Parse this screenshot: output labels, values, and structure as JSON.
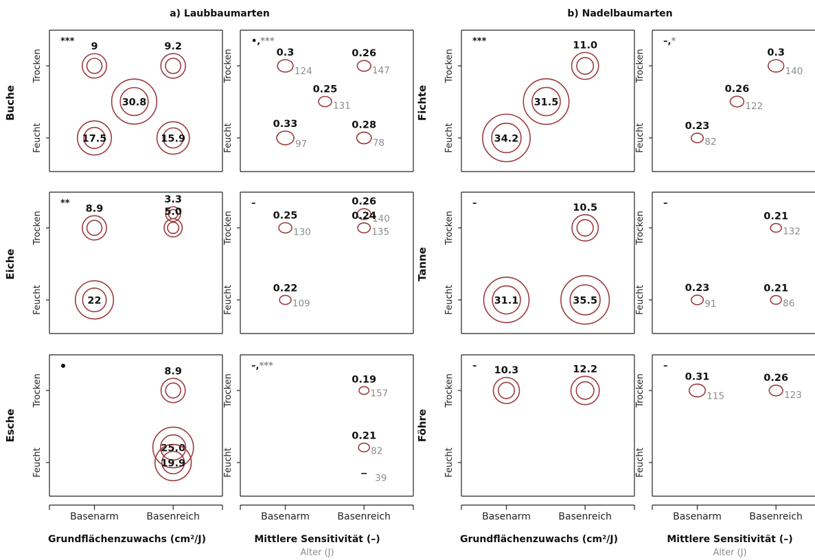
{
  "group_titles": [
    "a) Laubbaumarten",
    "b) Nadelbaumarten"
  ],
  "row_labels": [
    "Buche",
    "Eiche",
    "Esche",
    "Fichte",
    "Tanne",
    "Föhre"
  ],
  "y_tick_labels": [
    "Trocken",
    "Feucht"
  ],
  "x_tick_labels": [
    "Basenarm",
    "Basenreich"
  ],
  "x_titles": {
    "growth": "Grundflächenzuwachs (cm²/J)",
    "sensitivity": "Mittlere Sensitivität (–)",
    "sensitivity_sub": "Alter (J)"
  },
  "colors": {
    "circle": "#9b3a3e",
    "value": "#111111",
    "age": "#8c8c8c",
    "axis": "#222222"
  },
  "chart_data": [
    {
      "type": "scatter",
      "row": "Buche",
      "metric": "growth",
      "sig": [
        {
          "t": "***",
          "c": "black"
        }
      ],
      "points": [
        {
          "x": "Basenarm",
          "y": "Trocken",
          "value": "9"
        },
        {
          "x": "Basenarm",
          "y": "Feucht",
          "value": "17.5"
        },
        {
          "x": "Mitte",
          "y": "Mitte",
          "value": "30.8"
        },
        {
          "x": "Basenreich",
          "y": "Trocken",
          "value": "9.2"
        },
        {
          "x": "Basenreich",
          "y": "Feucht",
          "value": "15.9"
        }
      ]
    },
    {
      "type": "scatter",
      "row": "Buche",
      "metric": "sensitivity",
      "sig": [
        {
          "t": "•,",
          "c": "black"
        },
        {
          "t": "***",
          "c": "grey"
        }
      ],
      "points": [
        {
          "x": "Basenarm",
          "y": "Trocken",
          "value": "0.3",
          "age": "124"
        },
        {
          "x": "Basenarm",
          "y": "Feucht",
          "value": "0.33",
          "age": "97"
        },
        {
          "x": "Mitte",
          "y": "Mitte",
          "value": "0.25",
          "age": "131"
        },
        {
          "x": "Basenreich",
          "y": "Trocken",
          "value": "0.26",
          "age": "147"
        },
        {
          "x": "Basenreich",
          "y": "Feucht",
          "value": "0.28",
          "age": "78"
        }
      ]
    },
    {
      "type": "scatter",
      "row": "Fichte",
      "metric": "growth",
      "sig": [
        {
          "t": "***",
          "c": "black"
        }
      ],
      "points": [
        {
          "x": "Basenarm",
          "y": "Feucht",
          "value": "34.2"
        },
        {
          "x": "Mitte",
          "y": "Mitte",
          "value": "31.5"
        },
        {
          "x": "Basenreich",
          "y": "Trocken",
          "value": "11.0"
        }
      ]
    },
    {
      "type": "scatter",
      "row": "Fichte",
      "metric": "sensitivity",
      "sig": [
        {
          "t": "–,",
          "c": "black"
        },
        {
          "t": "*",
          "c": "grey"
        }
      ],
      "points": [
        {
          "x": "Basenarm",
          "y": "Feucht",
          "value": "0.23",
          "age": "82"
        },
        {
          "x": "Mitte",
          "y": "Mitte",
          "value": "0.26",
          "age": "122"
        },
        {
          "x": "Basenreich",
          "y": "Trocken",
          "value": "0.3",
          "age": "140"
        }
      ]
    },
    {
      "type": "scatter",
      "row": "Eiche",
      "metric": "growth",
      "sig": [
        {
          "t": "**",
          "c": "black"
        }
      ],
      "points": [
        {
          "x": "Basenarm",
          "y": "Trocken",
          "value": "8.9"
        },
        {
          "x": "Basenarm",
          "y": "Feucht",
          "value": "22"
        },
        {
          "x": "Basenreich",
          "y": "Sehr trocken",
          "value": "3.3"
        },
        {
          "x": "Basenreich",
          "y": "Trocken",
          "value": "5.0"
        }
      ]
    },
    {
      "type": "scatter",
      "row": "Eiche",
      "metric": "sensitivity",
      "sig": [
        {
          "t": "–",
          "c": "black"
        }
      ],
      "points": [
        {
          "x": "Basenarm",
          "y": "Trocken",
          "value": "0.25",
          "age": "130"
        },
        {
          "x": "Basenarm",
          "y": "Feucht",
          "value": "0.22",
          "age": "109"
        },
        {
          "x": "Basenreich",
          "y": "Sehr trocken",
          "value": "0.26",
          "age": "140"
        },
        {
          "x": "Basenreich",
          "y": "Trocken",
          "value": "0.24",
          "age": "135"
        }
      ]
    },
    {
      "type": "scatter",
      "row": "Tanne",
      "metric": "growth",
      "sig": [
        {
          "t": "–",
          "c": "black"
        }
      ],
      "points": [
        {
          "x": "Basenarm",
          "y": "Feucht",
          "value": "31.1"
        },
        {
          "x": "Basenreich",
          "y": "Trocken",
          "value": "10.5"
        },
        {
          "x": "Basenreich",
          "y": "Feucht",
          "value": "35.5"
        }
      ]
    },
    {
      "type": "scatter",
      "row": "Tanne",
      "metric": "sensitivity",
      "sig": [
        {
          "t": "–",
          "c": "black"
        }
      ],
      "points": [
        {
          "x": "Basenarm",
          "y": "Feucht",
          "value": "0.23",
          "age": "91"
        },
        {
          "x": "Basenreich",
          "y": "Trocken",
          "value": "0.21",
          "age": "132"
        },
        {
          "x": "Basenreich",
          "y": "Feucht",
          "value": "0.21",
          "age": "86"
        }
      ]
    },
    {
      "type": "scatter",
      "row": "Esche",
      "metric": "growth",
      "sig": [
        {
          "t": "•",
          "c": "black"
        }
      ],
      "points": [
        {
          "x": "Basenreich",
          "y": "Trocken",
          "value": "8.9"
        },
        {
          "x": "Basenreich",
          "y": "Mitte-feucht",
          "value": "25.0"
        },
        {
          "x": "Basenreich",
          "y": "Feucht",
          "value": "19.9"
        }
      ]
    },
    {
      "type": "scatter",
      "row": "Esche",
      "metric": "sensitivity",
      "sig": [
        {
          "t": "–,",
          "c": "black"
        },
        {
          "t": "***",
          "c": "grey"
        }
      ],
      "points": [
        {
          "x": "Basenreich",
          "y": "Trocken",
          "value": "0.19",
          "age": "157"
        },
        {
          "x": "Basenreich",
          "y": "Mitte-feucht",
          "value": "0.21",
          "age": "82"
        },
        {
          "x": "Basenreich",
          "y": "Feucht",
          "value": "–",
          "age": "39"
        }
      ]
    },
    {
      "type": "scatter",
      "row": "Föhre",
      "metric": "growth",
      "sig": [
        {
          "t": "–",
          "c": "black"
        }
      ],
      "points": [
        {
          "x": "Basenarm",
          "y": "Trocken",
          "value": "10.3"
        },
        {
          "x": "Basenreich",
          "y": "Trocken",
          "value": "12.2"
        }
      ]
    },
    {
      "type": "scatter",
      "row": "Föhre",
      "metric": "sensitivity",
      "sig": [
        {
          "t": "–",
          "c": "black"
        }
      ],
      "points": [
        {
          "x": "Basenarm",
          "y": "Trocken",
          "value": "0.31",
          "age": "115"
        },
        {
          "x": "Basenreich",
          "y": "Trocken",
          "value": "0.26",
          "age": "123"
        }
      ]
    }
  ]
}
